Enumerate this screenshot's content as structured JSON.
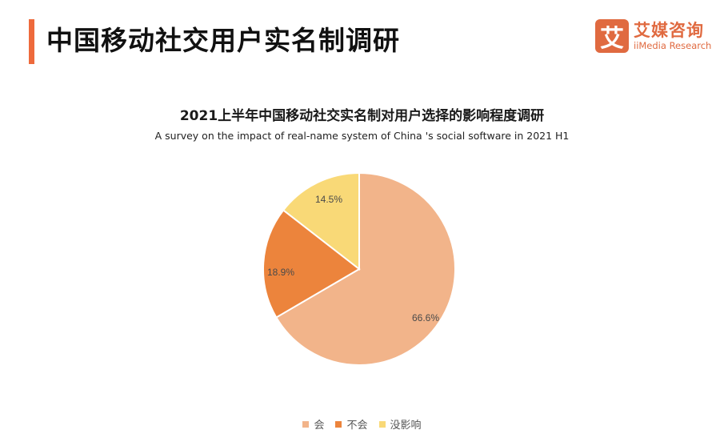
{
  "header": {
    "title": "中国移动社交用户实名制调研",
    "accent_color": "#ee6a3c"
  },
  "logo": {
    "mark": "艾",
    "name_cn": "艾媒咨询",
    "name_en": "iiMedia Research",
    "color": "#e06a40"
  },
  "chart_data": {
    "type": "pie",
    "title": "2021上半年中国移动社交实名制对用户选择的影响程度调研",
    "subtitle": "A survey on the impact of real-name system of China 's social software in 2021 H1",
    "categories": [
      "会",
      "不会",
      "没影响"
    ],
    "values": [
      66.6,
      18.9,
      14.5
    ],
    "labels": [
      "66.6%",
      "18.9%",
      "14.5%"
    ],
    "colors": [
      "#f2b48a",
      "#ec843c",
      "#f9d977"
    ],
    "start_angle": "12 o'clock, clockwise",
    "legend_position": "bottom"
  }
}
